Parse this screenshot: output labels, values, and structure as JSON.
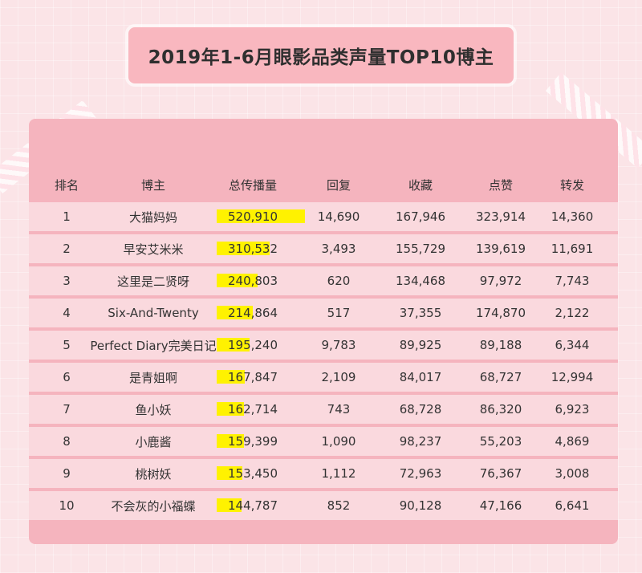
{
  "title": "2019年1-6月眼影品类声量TOP10博主",
  "colors": {
    "background": "#fbe4e7",
    "panel": "#f5b4be",
    "row_light": "#fad9de",
    "highlight": "#fff200"
  },
  "chart_data": {
    "type": "table",
    "title": "2019年1-6月眼影品类声量TOP10博主",
    "columns": [
      "排名",
      "博主",
      "总传播量",
      "回复",
      "收藏",
      "点赞",
      "转发"
    ],
    "rows": [
      {
        "rank": "1",
        "blogger": "大猫妈妈",
        "total": "520,910",
        "total_value": 520910,
        "reply": "14,690",
        "collect": "167,946",
        "like": "323,914",
        "forward": "14,360"
      },
      {
        "rank": "2",
        "blogger": "早安艾米米",
        "total": "310,532",
        "total_value": 310532,
        "reply": "3,493",
        "collect": "155,729",
        "like": "139,619",
        "forward": "11,691"
      },
      {
        "rank": "3",
        "blogger": "这里是二贤呀",
        "total": "240,803",
        "total_value": 240803,
        "reply": "620",
        "collect": "134,468",
        "like": "97,972",
        "forward": "7,743"
      },
      {
        "rank": "4",
        "blogger": "Six-And-Twenty",
        "total": "214,864",
        "total_value": 214864,
        "reply": "517",
        "collect": "37,355",
        "like": "174,870",
        "forward": "2,122"
      },
      {
        "rank": "5",
        "blogger": "Perfect Diary完美日记",
        "total": "195,240",
        "total_value": 195240,
        "reply": "9,783",
        "collect": "89,925",
        "like": "89,188",
        "forward": "6,344"
      },
      {
        "rank": "6",
        "blogger": "是青姐啊",
        "total": "167,847",
        "total_value": 167847,
        "reply": "2,109",
        "collect": "84,017",
        "like": "68,727",
        "forward": "12,994"
      },
      {
        "rank": "7",
        "blogger": "鱼小妖",
        "total": "162,714",
        "total_value": 162714,
        "reply": "743",
        "collect": "68,728",
        "like": "86,320",
        "forward": "6,923"
      },
      {
        "rank": "8",
        "blogger": "小鹿酱",
        "total": "159,399",
        "total_value": 159399,
        "reply": "1,090",
        "collect": "98,237",
        "like": "55,203",
        "forward": "4,869"
      },
      {
        "rank": "9",
        "blogger": "桃树妖",
        "total": "153,450",
        "total_value": 153450,
        "reply": "1,112",
        "collect": "72,963",
        "like": "76,367",
        "forward": "3,008"
      },
      {
        "rank": "10",
        "blogger": "不会灰的小福蝶",
        "total": "144,787",
        "total_value": 144787,
        "reply": "852",
        "collect": "90,128",
        "like": "47,166",
        "forward": "6,641"
      }
    ]
  }
}
